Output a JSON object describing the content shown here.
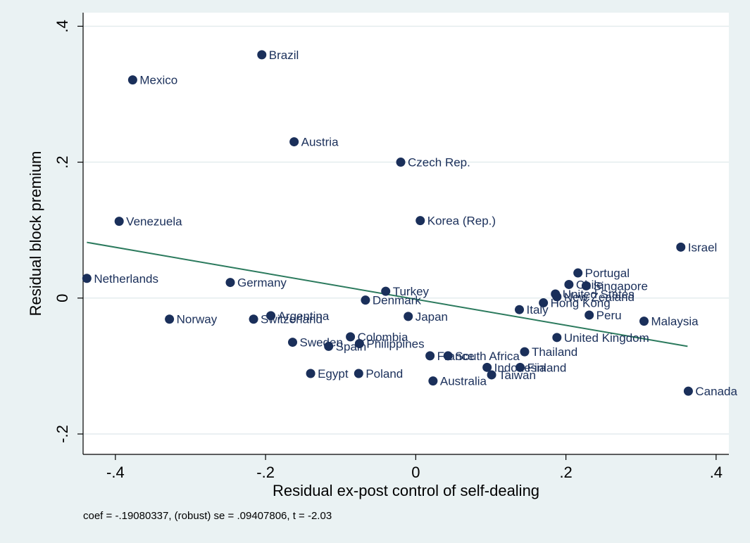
{
  "chart_data": {
    "type": "scatter",
    "xlabel": "Residual ex-post control of self-dealing",
    "ylabel": "Residual block premium",
    "xlim": [
      -0.443,
      0.417
    ],
    "ylim": [
      -0.23,
      0.42
    ],
    "x_ticks": [
      {
        "value": -0.4,
        "label": "-.4"
      },
      {
        "value": -0.2,
        "label": "-.2"
      },
      {
        "value": 0,
        "label": "0"
      },
      {
        "value": 0.2,
        "label": ".2"
      },
      {
        "value": 0.4,
        "label": ".4"
      }
    ],
    "y_ticks": [
      {
        "value": -0.2,
        "label": "-.2"
      },
      {
        "value": 0,
        "label": "0"
      },
      {
        "value": 0.2,
        "label": ".2"
      },
      {
        "value": 0.4,
        "label": ".4"
      }
    ],
    "grid": "horizontal",
    "note": "coef = -.19080337, (robust) se = .09407806, t = -2.03",
    "fit_line": {
      "x": [
        -0.438,
        0.362
      ],
      "y": [
        0.082,
        -0.071
      ]
    },
    "colors": {
      "background": "#eaf2f3",
      "plot_background": "#ffffff",
      "marker": "#1a2f5a",
      "fit_line": "#2b7a5d",
      "grid": "#e4ecee"
    },
    "points": [
      {
        "label": "Brazil",
        "x": -0.205,
        "y": 0.358
      },
      {
        "label": "Mexico",
        "x": -0.377,
        "y": 0.321
      },
      {
        "label": "Austria",
        "x": -0.162,
        "y": 0.23
      },
      {
        "label": "Czech Rep.",
        "x": -0.02,
        "y": 0.2
      },
      {
        "label": "Venezuela",
        "x": -0.395,
        "y": 0.113
      },
      {
        "label": "Korea (Rep.)",
        "x": 0.006,
        "y": 0.114
      },
      {
        "label": "Israel",
        "x": 0.353,
        "y": 0.075
      },
      {
        "label": "Netherlands",
        "x": -0.438,
        "y": 0.029
      },
      {
        "label": "Germany",
        "x": -0.247,
        "y": 0.023
      },
      {
        "label": "Portugal",
        "x": 0.216,
        "y": 0.037
      },
      {
        "label": "Chile",
        "x": 0.204,
        "y": 0.02
      },
      {
        "label": "Singapore",
        "x": 0.227,
        "y": 0.018
      },
      {
        "label": "United States",
        "x": 0.186,
        "y": 0.006
      },
      {
        "label": "New Zealand",
        "x": 0.188,
        "y": 0.002
      },
      {
        "label": "Turkey",
        "x": -0.04,
        "y": 0.01
      },
      {
        "label": "Denmark",
        "x": -0.067,
        "y": -0.003
      },
      {
        "label": "Hong Kong",
        "x": 0.17,
        "y": -0.007
      },
      {
        "label": "Italy",
        "x": 0.138,
        "y": -0.017
      },
      {
        "label": "Peru",
        "x": 0.231,
        "y": -0.025
      },
      {
        "label": "Malaysia",
        "x": 0.304,
        "y": -0.034
      },
      {
        "label": "Japan",
        "x": -0.01,
        "y": -0.027
      },
      {
        "label": "Argentina",
        "x": -0.193,
        "y": -0.026
      },
      {
        "label": "Norway",
        "x": -0.328,
        "y": -0.031
      },
      {
        "label": "Switzerland",
        "x": -0.216,
        "y": -0.031
      },
      {
        "label": "Colombia",
        "x": -0.087,
        "y": -0.057
      },
      {
        "label": "United Kingdom",
        "x": 0.188,
        "y": -0.058
      },
      {
        "label": "Sweden",
        "x": -0.164,
        "y": -0.065
      },
      {
        "label": "Philippines",
        "x": -0.075,
        "y": -0.067
      },
      {
        "label": "Spain",
        "x": -0.116,
        "y": -0.071
      },
      {
        "label": "Thailand",
        "x": 0.145,
        "y": -0.079
      },
      {
        "label": "France",
        "x": 0.019,
        "y": -0.085
      },
      {
        "label": "South Africa",
        "x": 0.043,
        "y": -0.085
      },
      {
        "label": "Indonesia",
        "x": 0.095,
        "y": -0.102
      },
      {
        "label": "Finland",
        "x": 0.139,
        "y": -0.102
      },
      {
        "label": "Egypt",
        "x": -0.14,
        "y": -0.111
      },
      {
        "label": "Poland",
        "x": -0.076,
        "y": -0.111
      },
      {
        "label": "Taiwan",
        "x": 0.101,
        "y": -0.113
      },
      {
        "label": "Australia",
        "x": 0.023,
        "y": -0.122
      },
      {
        "label": "Canada",
        "x": 0.363,
        "y": -0.137
      }
    ]
  }
}
